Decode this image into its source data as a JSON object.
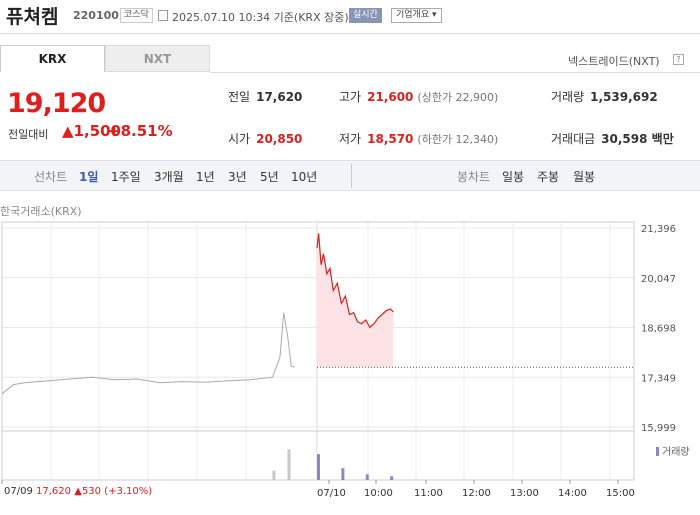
{
  "header": {
    "name": "퓨쳐켐",
    "code": "220100",
    "market": "코스닥",
    "date": "2025.07.10 10:34 기준(KRX 장중)",
    "live": "실시간",
    "overview": "기업개요"
  },
  "tabs": {
    "krx": "KRX",
    "nxt": "NXT",
    "nxt_link": "넥스트레이드(NXT)"
  },
  "price": {
    "current": "19,120",
    "change_label": "전일대비",
    "change": "▲1,500",
    "change_pct": "+8.51%"
  },
  "quote": {
    "prev_label": "전일",
    "prev": "17,620",
    "high_label": "고가",
    "high": "21,600",
    "upper_limit": "(상한가 22,900)",
    "volume_label": "거래량",
    "volume": "1,539,692",
    "open_label": "시가",
    "open": "20,850",
    "low_label": "저가",
    "low": "18,570",
    "lower_limit": "(하한가 12,340)",
    "amount_label": "거래대금",
    "amount": "30,598 백만"
  },
  "periods": {
    "line_label": "선차트",
    "line": [
      "1일",
      "1주일",
      "3개월",
      "1년",
      "3년",
      "5년",
      "10년"
    ],
    "candle_label": "봉차트",
    "candle": [
      "일봉",
      "주봉",
      "월봉"
    ]
  },
  "chart_source": "한국거래소(KRX)",
  "volume_legend": "거래량",
  "prev_day_summary": {
    "date": "07/09",
    "price": "17,620",
    "change": "▲530",
    "pct": "(+3.10%)"
  },
  "colors": {
    "up": "#e01e1e",
    "accent": "#3b5bb5",
    "volume": "#8a86c8"
  },
  "chart_data": {
    "type": "line",
    "y_ticks": [
      "21,396",
      "20,047",
      "18,698",
      "17,349",
      "15,999"
    ],
    "ylim": [
      15999,
      21396
    ],
    "x_ticks": [
      "07/09",
      "07/10",
      "10:00",
      "11:00",
      "12:00",
      "13:00",
      "14:00",
      "15:00"
    ],
    "prev_close": 17620,
    "series": [
      {
        "x": [
          "07/09 09:00",
          "07/09 09:15",
          "07/09 09:30",
          "07/09 10:00",
          "07/09 10:30",
          "07/09 11:00",
          "07/09 11:30",
          "07/09 12:00",
          "07/09 12:30",
          "07/09 13:00",
          "07/09 13:30",
          "07/09 14:00",
          "07/09 14:30",
          "07/09 15:00",
          "07/09 15:10",
          "07/09 15:15",
          "07/09 15:20",
          "07/09 15:25",
          "07/09 15:30"
        ],
        "values": [
          16900,
          17150,
          17200,
          17250,
          17300,
          17350,
          17280,
          17300,
          17200,
          17230,
          17210,
          17250,
          17280,
          17350,
          17900,
          19100,
          18500,
          17650,
          17620
        ]
      },
      {
        "x": [
          "07/10 09:00",
          "07/10 09:02",
          "07/10 09:05",
          "07/10 09:08",
          "07/10 09:12",
          "07/10 09:16",
          "07/10 09:20",
          "07/10 09:25",
          "07/10 09:30",
          "07/10 09:35",
          "07/10 09:40",
          "07/10 09:45",
          "07/10 09:50",
          "07/10 09:55",
          "07/10 10:00",
          "07/10 10:05",
          "07/10 10:10",
          "07/10 10:15",
          "07/10 10:20",
          "07/10 10:25",
          "07/10 10:30",
          "07/10 10:34"
        ],
        "values": [
          20850,
          21250,
          20400,
          20700,
          20150,
          20300,
          19700,
          19900,
          19350,
          19550,
          19050,
          19100,
          18850,
          18800,
          18900,
          18700,
          18800,
          18950,
          19050,
          19150,
          19200,
          19120
        ]
      }
    ],
    "volume": {
      "x": [
        "07/09 15:00",
        "07/09 15:20",
        "07/10 09:00",
        "07/10 09:30",
        "07/10 10:00",
        "07/10 10:30"
      ],
      "values": [
        0.2,
        0.65,
        0.55,
        0.25,
        0.12,
        0.08
      ]
    }
  }
}
